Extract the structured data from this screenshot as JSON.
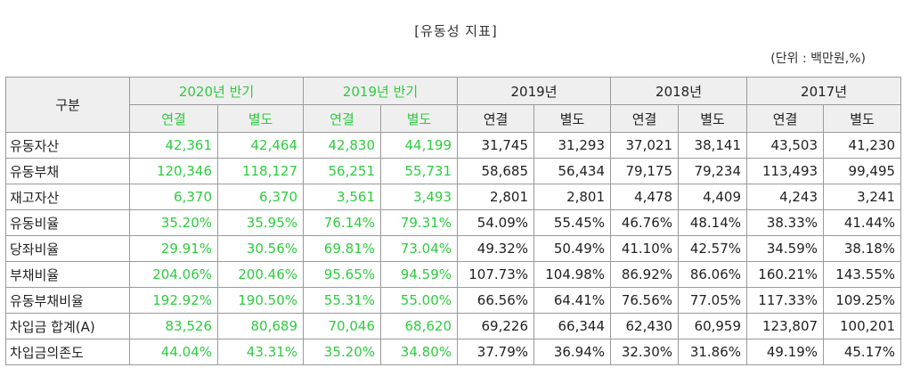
{
  "title": "[유동성 지표]",
  "unit": "(단위 : 백만원,%)",
  "table": {
    "corner": "구분",
    "periods": [
      "2020년 반기",
      "2019년 반기",
      "2019년",
      "2018년",
      "2017년"
    ],
    "subheaders": [
      "연결",
      "별도",
      "연결",
      "별도",
      "연결",
      "별도",
      "연결",
      "별도",
      "연결",
      "별도"
    ],
    "rows": [
      {
        "label": "유동자산",
        "values": [
          "42,361",
          "42,464",
          "42,830",
          "44,199",
          "31,745",
          "31,293",
          "37,021",
          "38,141",
          "43,503",
          "41,230"
        ]
      },
      {
        "label": "유동부채",
        "values": [
          "120,346",
          "118,127",
          "56,251",
          "55,731",
          "58,685",
          "56,434",
          "79,175",
          "79,234",
          "113,493",
          "99,495"
        ]
      },
      {
        "label": "재고자산",
        "values": [
          "6,370",
          "6,370",
          "3,561",
          "3,493",
          "2,801",
          "2,801",
          "4,478",
          "4,409",
          "4,243",
          "3,241"
        ]
      },
      {
        "label": "유동비율",
        "values": [
          "35.20%",
          "35.95%",
          "76.14%",
          "79.31%",
          "54.09%",
          "55.45%",
          "46.76%",
          "48.14%",
          "38.33%",
          "41.44%"
        ]
      },
      {
        "label": "당좌비율",
        "values": [
          "29.91%",
          "30.56%",
          "69.81%",
          "73.04%",
          "49.32%",
          "50.49%",
          "41.10%",
          "42.57%",
          "34.59%",
          "38.18%"
        ]
      },
      {
        "label": "부채비율",
        "values": [
          "204.06%",
          "200.46%",
          "95.65%",
          "94.59%",
          "107.73%",
          "104.98%",
          "86.92%",
          "86.06%",
          "160.21%",
          "143.55%"
        ]
      },
      {
        "label": "유동부채비율",
        "values": [
          "192.92%",
          "190.50%",
          "55.31%",
          "55.00%",
          "66.56%",
          "64.41%",
          "76.56%",
          "77.05%",
          "117.33%",
          "109.25%"
        ]
      },
      {
        "label": "차입금 합계(A)",
        "values": [
          "83,526",
          "80,689",
          "70,046",
          "68,620",
          "69,226",
          "66,344",
          "62,430",
          "60,959",
          "123,807",
          "100,201"
        ]
      },
      {
        "label": "차입금의존도",
        "values": [
          "44.04%",
          "43.31%",
          "35.20%",
          "34.80%",
          "37.79%",
          "36.94%",
          "32.30%",
          "31.86%",
          "49.19%",
          "45.17%"
        ]
      }
    ]
  },
  "colors": {
    "highlight": "#2ecc40",
    "header_bg": "#efefef",
    "border": "#9a9a9a"
  }
}
